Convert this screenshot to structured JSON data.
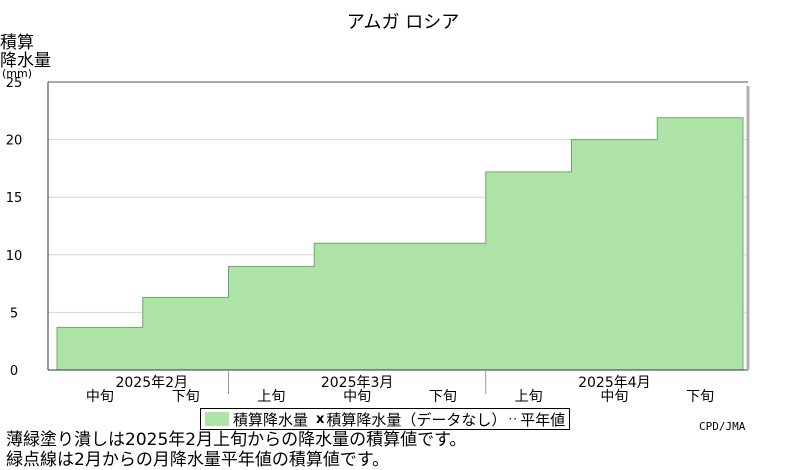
{
  "chart_data": {
    "type": "bar",
    "title": "アムガ ロシア",
    "ylabel": [
      "積算",
      "降水量",
      "(mm)"
    ],
    "ylim": [
      0,
      25
    ],
    "yticks": [
      0,
      5,
      10,
      15,
      20,
      25
    ],
    "grid": true,
    "categories": [
      "2025年2月 中旬",
      "2025年2月 下旬",
      "2025年3月 上旬",
      "2025年3月 中旬",
      "2025年3月 下旬",
      "2025年4月 上旬",
      "2025年4月 中旬",
      "2025年4月 下旬"
    ],
    "series": [
      {
        "name": "積算降水量",
        "color": "#aee3a8",
        "values": [
          3.7,
          6.3,
          9.0,
          11.0,
          11.0,
          17.2,
          20.0,
          21.9
        ]
      }
    ],
    "x_groups": [
      {
        "label": "2025年2月",
        "dekads": [
          "中旬",
          "下旬"
        ]
      },
      {
        "label": "2025年3月",
        "dekads": [
          "上旬",
          "中旬",
          "下旬"
        ]
      },
      {
        "label": "2025年4月",
        "dekads": [
          "上旬",
          "中旬",
          "下旬"
        ]
      }
    ],
    "legend": {
      "position": "bottom-center",
      "entries": [
        "積算降水量",
        "積算降水量（データなし）",
        "平年値"
      ],
      "mark": "x"
    }
  },
  "credit": "CPD/JMA",
  "notes": [
    "薄緑塗り潰しは2025年2月上旬からの降水量の積算値です。",
    "緑点線は2月からの月降水量平年値の積算値です。"
  ]
}
